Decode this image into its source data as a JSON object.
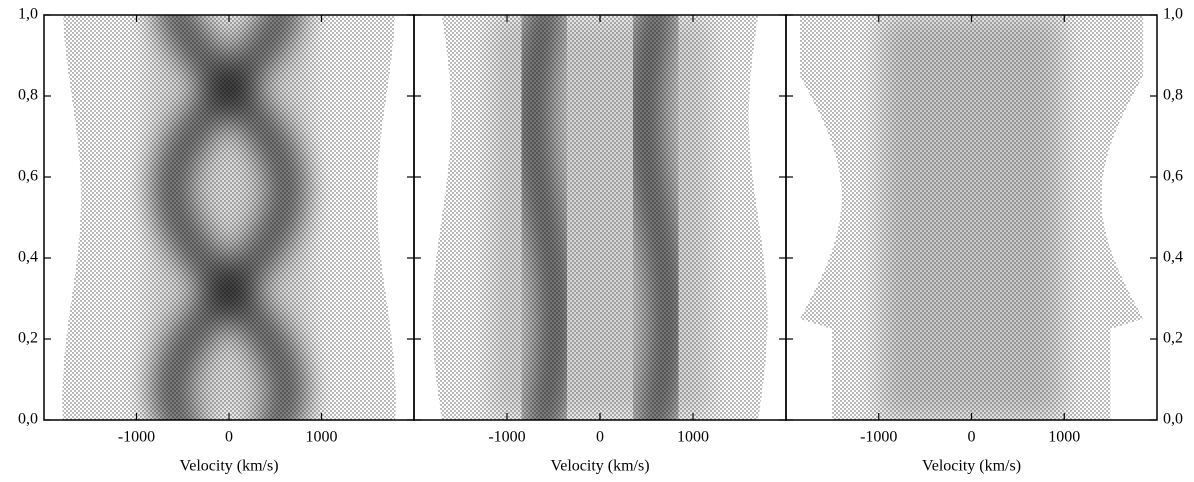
{
  "chart_data": [
    {
      "type": "image",
      "x_label": "Velocity (km/s)",
      "xlim": [
        -2000,
        2000
      ],
      "ylim": [
        0,
        1
      ],
      "xticks": [
        -1000,
        0,
        1000
      ],
      "yticks": [
        {
          "value": 0,
          "label": "0,0"
        },
        {
          "value": 0.2,
          "label": "0,2"
        },
        {
          "value": 0.4,
          "label": "0,4"
        },
        {
          "value": 0.6,
          "label": "0,6"
        },
        {
          "value": 0.8,
          "label": "0,8"
        },
        {
          "value": 1,
          "label": "1,0"
        }
      ]
    },
    {
      "type": "image",
      "x_label": "Velocity (km/s)",
      "xlim": [
        -2000,
        2000
      ],
      "ylim": [
        0,
        1
      ],
      "xticks": [
        -1000,
        0,
        1000
      ]
    },
    {
      "type": "image",
      "x_label": "Velocity (km/s)",
      "xlim": [
        -2000,
        2000
      ],
      "ylim": [
        0,
        1
      ],
      "xticks": [
        -1000,
        0,
        1000
      ],
      "y_axis_side": "right",
      "yticks": [
        {
          "value": 0,
          "label": "0,0"
        },
        {
          "value": 0.2,
          "label": "0,2"
        },
        {
          "value": 0.4,
          "label": "0,4"
        },
        {
          "value": 0.6,
          "label": "0,6"
        },
        {
          "value": 0.8,
          "label": "0,8"
        },
        {
          "value": 1,
          "label": "1,0"
        }
      ]
    }
  ]
}
